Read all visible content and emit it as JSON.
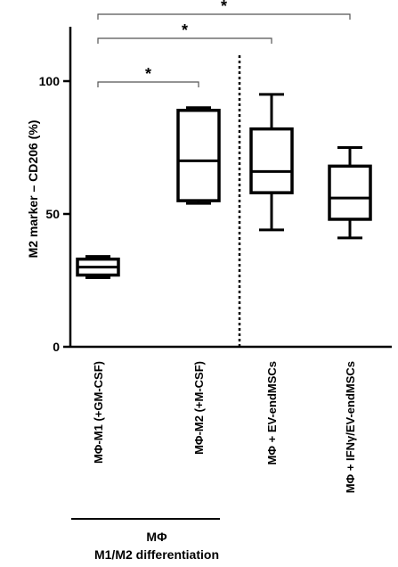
{
  "chart_data": {
    "type": "box",
    "ylabel": "M2 marker – CD206 (%)",
    "ylim": [
      0,
      120
    ],
    "yticks": [
      0,
      50,
      100
    ],
    "categories": [
      "MΦ-M1 (+GM-CSF)",
      "MΦ-M2 (+M-CSF)",
      "MΦ + EV-endMSCs",
      "MΦ + IFNγ/EV-endMSCs"
    ],
    "boxes": [
      {
        "min": 26,
        "q1": 27,
        "median": 30,
        "q3": 33,
        "max": 34
      },
      {
        "min": 54,
        "q1": 55,
        "median": 70,
        "q3": 89,
        "max": 90
      },
      {
        "min": 44,
        "q1": 58,
        "median": 66,
        "q3": 82,
        "max": 95
      },
      {
        "min": 41,
        "q1": 48,
        "median": 56,
        "q3": 68,
        "max": 75
      }
    ],
    "group_label": [
      "MΦ",
      "M1/M2 differentiation"
    ],
    "significance": [
      {
        "from": 0,
        "to": 1,
        "label": "*"
      },
      {
        "from": 0,
        "to": 2,
        "label": "*"
      },
      {
        "from": 0,
        "to": 3,
        "label": "*"
      }
    ],
    "divider_between": [
      1,
      2
    ]
  }
}
